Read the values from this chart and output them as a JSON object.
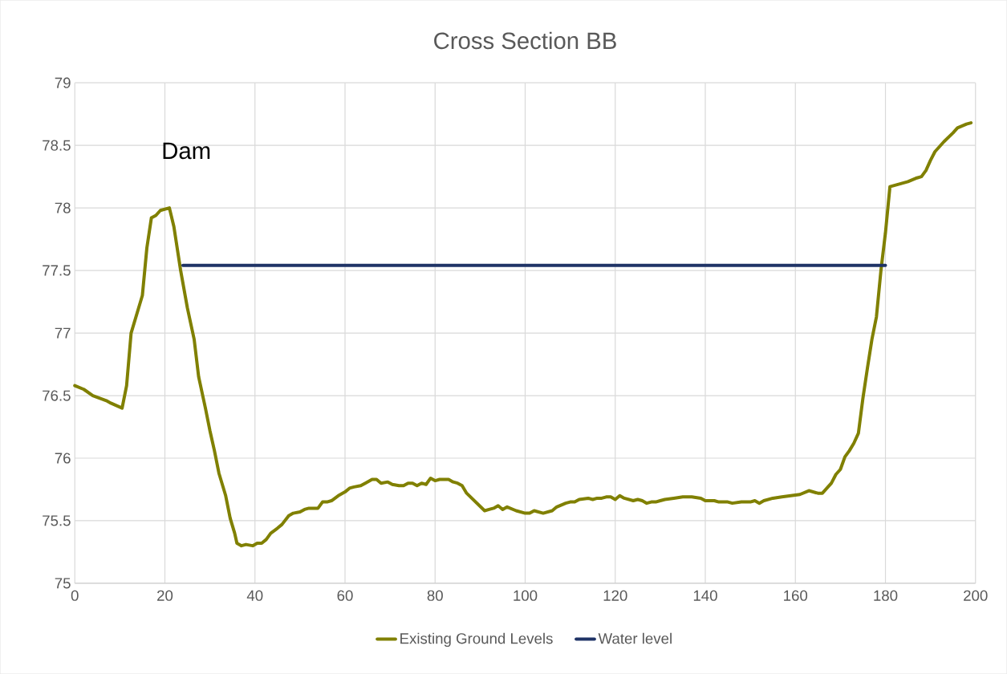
{
  "chart_data": {
    "type": "line",
    "title": "Cross Section BB",
    "annotations": [
      "Dam"
    ],
    "xlim": [
      0,
      200
    ],
    "xticks": [
      0,
      20,
      40,
      60,
      80,
      100,
      120,
      140,
      160,
      180,
      200
    ],
    "ylim": [
      75,
      79
    ],
    "yticks": [
      75,
      75.5,
      76,
      76.5,
      77,
      77.5,
      78,
      78.5,
      79
    ],
    "grid": true,
    "legend": "bottom",
    "marker": "none",
    "line_style": "solid",
    "series": [
      {
        "name": "Existing Ground Levels",
        "color": "#808000",
        "x": [
          0,
          2,
          4,
          7,
          8,
          10.5,
          11.5,
          12.5,
          15,
          16,
          17,
          18,
          19,
          21,
          22,
          23.5,
          25,
          26.5,
          27.5,
          29,
          30,
          31,
          32,
          33.5,
          34.5,
          35.5,
          36,
          37,
          38,
          39.5,
          40.5,
          41.5,
          42.5,
          43.5,
          45,
          46,
          47.5,
          48.5,
          50,
          51,
          52,
          54,
          55,
          56,
          57,
          58.5,
          60,
          61,
          62,
          63.5,
          64.5,
          66,
          67,
          68,
          69.5,
          70.5,
          72,
          73,
          74,
          75,
          76,
          77,
          78,
          79,
          80,
          81,
          82,
          83,
          84,
          85,
          86,
          87,
          89,
          91,
          92,
          93,
          94,
          95,
          96,
          98,
          100,
          101,
          102,
          104,
          106,
          107,
          109,
          110,
          111,
          112,
          114,
          115,
          116,
          117,
          118,
          119,
          120,
          121,
          122,
          124,
          125,
          126,
          127,
          128,
          129,
          130,
          131,
          133,
          135,
          137,
          139,
          140,
          142,
          143,
          145,
          146,
          148,
          150,
          151,
          152,
          153,
          155,
          157,
          159,
          161,
          163,
          165,
          166,
          168,
          169,
          170,
          171,
          172,
          173,
          174,
          175,
          176,
          177,
          178,
          179,
          180,
          181,
          183,
          185,
          187,
          188,
          189,
          190,
          191,
          193,
          195,
          196,
          198,
          199
        ],
        "values": [
          76.58,
          76.55,
          76.5,
          76.46,
          76.44,
          76.4,
          76.58,
          77.0,
          77.3,
          77.68,
          77.92,
          77.94,
          77.98,
          78.0,
          77.85,
          77.5,
          77.2,
          76.95,
          76.65,
          76.4,
          76.22,
          76.06,
          75.88,
          75.7,
          75.52,
          75.4,
          75.32,
          75.3,
          75.31,
          75.3,
          75.32,
          75.32,
          75.35,
          75.4,
          75.44,
          75.47,
          75.54,
          75.56,
          75.57,
          75.59,
          75.6,
          75.6,
          75.65,
          75.65,
          75.66,
          75.7,
          75.73,
          75.76,
          75.77,
          75.78,
          75.8,
          75.83,
          75.83,
          75.8,
          75.81,
          75.79,
          75.78,
          75.78,
          75.8,
          75.8,
          75.78,
          75.8,
          75.79,
          75.84,
          75.82,
          75.83,
          75.83,
          75.83,
          75.81,
          75.8,
          75.78,
          75.72,
          75.65,
          75.58,
          75.59,
          75.6,
          75.62,
          75.59,
          75.61,
          75.58,
          75.56,
          75.56,
          75.58,
          75.56,
          75.58,
          75.61,
          75.64,
          75.65,
          75.65,
          75.67,
          75.68,
          75.67,
          75.68,
          75.68,
          75.69,
          75.69,
          75.67,
          75.7,
          75.68,
          75.66,
          75.67,
          75.66,
          75.64,
          75.65,
          75.65,
          75.66,
          75.67,
          75.68,
          75.69,
          75.69,
          75.68,
          75.66,
          75.66,
          75.65,
          75.65,
          75.64,
          75.65,
          75.65,
          75.66,
          75.64,
          75.66,
          75.68,
          75.69,
          75.7,
          75.71,
          75.74,
          75.72,
          75.72,
          75.8,
          75.87,
          75.91,
          76.01,
          76.06,
          76.12,
          76.2,
          76.48,
          76.72,
          76.95,
          77.13,
          77.5,
          77.8,
          78.17,
          78.19,
          78.21,
          78.24,
          78.25,
          78.3,
          78.38,
          78.45,
          78.53,
          78.6,
          78.64,
          78.67,
          78.68
        ]
      },
      {
        "name": "Water level",
        "color": "#1f3366",
        "x": [
          24,
          180
        ],
        "values": [
          77.54,
          77.54
        ]
      }
    ]
  }
}
